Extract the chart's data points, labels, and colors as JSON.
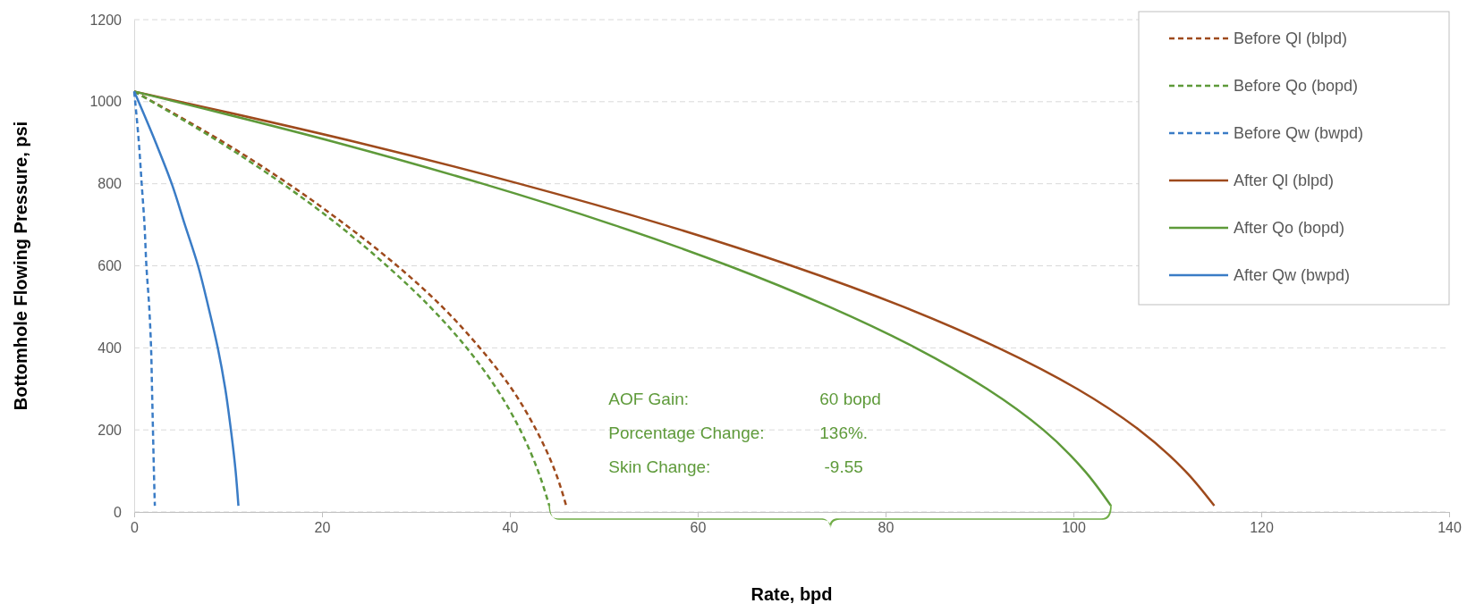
{
  "chart_data": {
    "type": "line",
    "xlabel": "Rate, bpd",
    "ylabel": "Bottomhole Flowing Pressure, psi",
    "xlim": [
      0,
      140
    ],
    "xticks": [
      0,
      20,
      40,
      60,
      80,
      100,
      120,
      140
    ],
    "ylim": [
      0,
      1200
    ],
    "yticks": [
      0,
      200,
      400,
      600,
      800,
      1000,
      1200
    ],
    "grid": "y",
    "legend": "top right",
    "marker": "none",
    "series": [
      {
        "name": "Before Ql (blpd)",
        "color": "#9e4a1c",
        "line_style": "dashed",
        "x": [
          0,
          9.6,
          16.4,
          22.5,
          28.0,
          32.8,
          36.8,
          40.2,
          42.8,
          44.8,
          46
        ],
        "values": [
          1025,
          900,
          800,
          700,
          600,
          500,
          400,
          300,
          200,
          100,
          15
        ]
      },
      {
        "name": "Before Qo (bopd)",
        "color": "#5e9a3a",
        "line_style": "dashed",
        "x": [
          0,
          9.2,
          15.8,
          21.7,
          26.9,
          31.5,
          35.4,
          38.6,
          41.1,
          43.0,
          44.2
        ],
        "values": [
          1025,
          900,
          800,
          700,
          600,
          500,
          400,
          300,
          200,
          100,
          15
        ]
      },
      {
        "name": "Before Qw (bwpd)",
        "color": "#3a7cc6",
        "line_style": "dashed",
        "x": [
          0,
          0.5,
          0.8,
          1.1,
          1.3,
          1.6,
          1.8,
          1.9,
          2.0,
          2.1,
          2.2
        ],
        "values": [
          1025,
          900,
          800,
          700,
          600,
          500,
          400,
          300,
          200,
          100,
          15
        ]
      },
      {
        "name": "After Ql (blpd)",
        "color": "#9e4a1c",
        "line_style": "solid",
        "x": [
          0,
          23.9,
          41.0,
          56.4,
          70.0,
          81.9,
          92.0,
          100.4,
          107.0,
          111.9,
          115
        ],
        "values": [
          1025,
          900,
          800,
          700,
          600,
          500,
          400,
          300,
          200,
          100,
          15
        ]
      },
      {
        "name": "After Qo (bopd)",
        "color": "#5e9a3a",
        "line_style": "solid",
        "x": [
          0,
          21.6,
          37.1,
          51.0,
          63.3,
          74.0,
          83.2,
          90.8,
          96.8,
          101.2,
          104
        ],
        "values": [
          1025,
          900,
          800,
          700,
          600,
          500,
          400,
          300,
          200,
          100,
          15
        ]
      },
      {
        "name": "After Qw (bwpd)",
        "color": "#3a7cc6",
        "line_style": "solid",
        "x": [
          0,
          2.3,
          4.0,
          5.4,
          6.8,
          7.9,
          8.9,
          9.7,
          10.3,
          10.8,
          11.1
        ],
        "values": [
          1025,
          900,
          800,
          700,
          600,
          500,
          400,
          300,
          200,
          100,
          15
        ]
      }
    ],
    "annotations": [
      "AOF Gain:",
      "60 bopd",
      "Porcentage Change:",
      "136%.",
      "Skin Change:",
      " -9.55"
    ]
  }
}
